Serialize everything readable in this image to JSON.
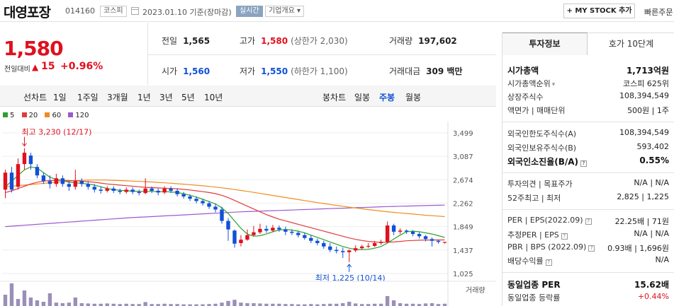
{
  "header": {
    "name": "대영포장",
    "code": "014160",
    "market_tag": "코스피",
    "date": "2023.01.10 기준(장마감)",
    "live_tag": "실시간",
    "company_tag": "기업개요 ▾",
    "mystock": "+ MY STOCK 추가",
    "quick_order": "빠른주문"
  },
  "price": {
    "current": "1,580",
    "change_label": "전일대비",
    "change_icon": "▲",
    "change": "15",
    "change_pct": "+0.96%"
  },
  "stats": {
    "prev": {
      "label": "전일",
      "value": "1,565"
    },
    "high": {
      "label": "고가",
      "value": "1,580",
      "sub": "(상한가 2,030)"
    },
    "volume": {
      "label": "거래량",
      "value": "197,602"
    },
    "open": {
      "label": "시가",
      "value": "1,560"
    },
    "low": {
      "label": "저가",
      "value": "1,550",
      "sub": "(하한가 1,100)"
    },
    "amount": {
      "label": "거래대금",
      "value": "309 백만"
    }
  },
  "period_bar": {
    "line_label": "선차트",
    "line_periods": [
      "1일",
      "1주일",
      "3개월",
      "1년",
      "3년",
      "5년",
      "10년"
    ],
    "candle_label": "봉차트",
    "candle_periods": [
      "일봉",
      "주봉",
      "월봉"
    ],
    "active": "주봉"
  },
  "chart_data": {
    "type": "candlestick",
    "legend": [
      {
        "name": "5",
        "color": "#2ca02c"
      },
      {
        "name": "20",
        "color": "#e23b3b"
      },
      {
        "name": "60",
        "color": "#f08c1e"
      },
      {
        "name": "120",
        "color": "#9a5ad0"
      }
    ],
    "y_ticks": [
      "3,499",
      "3,087",
      "2,674",
      "2,262",
      "1,849",
      "1,437",
      "1,025"
    ],
    "ylim": [
      1025,
      3499
    ],
    "max_annotation": "최고 3,230 (12/17)",
    "min_annotation": "최저 1,225 (10/14)",
    "volume_label": "거래량",
    "candles": [
      [
        2500,
        2800,
        2350,
        2850
      ],
      [
        2800,
        2500,
        2450,
        2900
      ],
      [
        2550,
        2950,
        2500,
        3050
      ],
      [
        2950,
        3150,
        2850,
        3230
      ],
      [
        3100,
        2950,
        2850,
        3150
      ],
      [
        2900,
        2750,
        2700,
        2950
      ],
      [
        2750,
        2650,
        2600,
        2800
      ],
      [
        2650,
        2600,
        2520,
        2750
      ],
      [
        2600,
        2700,
        2550,
        2780
      ],
      [
        2700,
        2600,
        2550,
        2750
      ],
      [
        2600,
        2550,
        2480,
        2650
      ],
      [
        2550,
        2650,
        2500,
        2850
      ],
      [
        2650,
        2600,
        2550,
        2700
      ],
      [
        2600,
        2550,
        2500,
        2650
      ],
      [
        2550,
        2500,
        2450,
        2600
      ],
      [
        2500,
        2480,
        2430,
        2560
      ],
      [
        2480,
        2520,
        2450,
        2560
      ],
      [
        2520,
        2480,
        2440,
        2560
      ],
      [
        2480,
        2460,
        2420,
        2520
      ],
      [
        2460,
        2500,
        2430,
        2540
      ],
      [
        2500,
        2460,
        2420,
        2540
      ],
      [
        2460,
        2440,
        2400,
        2500
      ],
      [
        2440,
        2520,
        2420,
        2700
      ],
      [
        2520,
        2480,
        2440,
        2560
      ],
      [
        2480,
        2450,
        2400,
        2520
      ],
      [
        2450,
        2520,
        2420,
        2560
      ],
      [
        2520,
        2480,
        2440,
        2560
      ],
      [
        2480,
        2420,
        2380,
        2520
      ],
      [
        2420,
        2380,
        2340,
        2460
      ],
      [
        2380,
        2340,
        2300,
        2420
      ],
      [
        2340,
        2300,
        2260,
        2380
      ],
      [
        2300,
        2260,
        2220,
        2340
      ],
      [
        2260,
        2200,
        2160,
        2300
      ],
      [
        2200,
        2150,
        2100,
        2250
      ],
      [
        2150,
        1950,
        1900,
        2200
      ],
      [
        1950,
        1800,
        1600,
        2000
      ],
      [
        1780,
        1550,
        1480,
        1800
      ],
      [
        1560,
        1620,
        1500,
        1700
      ],
      [
        1620,
        1700,
        1600,
        1800
      ],
      [
        1700,
        1750,
        1680,
        1860
      ],
      [
        1750,
        1810,
        1720,
        1900
      ],
      [
        1810,
        1780,
        1740,
        1870
      ],
      [
        1780,
        1830,
        1750,
        1880
      ],
      [
        1830,
        1800,
        1760,
        1870
      ],
      [
        1800,
        1760,
        1700,
        1850
      ],
      [
        1760,
        1740,
        1700,
        1800
      ],
      [
        1740,
        1700,
        1660,
        1780
      ],
      [
        1700,
        1650,
        1620,
        1740
      ],
      [
        1650,
        1600,
        1560,
        1700
      ],
      [
        1600,
        1560,
        1520,
        1640
      ],
      [
        1560,
        1500,
        1460,
        1600
      ],
      [
        1500,
        1440,
        1400,
        1560
      ],
      [
        1440,
        1420,
        1380,
        1500
      ],
      [
        1420,
        1400,
        1300,
        1480
      ],
      [
        1400,
        1430,
        1225,
        1450
      ],
      [
        1430,
        1470,
        1400,
        1520
      ],
      [
        1470,
        1500,
        1450,
        1530
      ],
      [
        1500,
        1510,
        1470,
        1560
      ],
      [
        1510,
        1560,
        1490,
        1600
      ],
      [
        1560,
        1580,
        1530,
        1620
      ],
      [
        1580,
        1870,
        1560,
        1940
      ],
      [
        1870,
        1760,
        1700,
        1900
      ],
      [
        1760,
        1780,
        1720,
        1820
      ],
      [
        1780,
        1760,
        1720,
        1800
      ],
      [
        1760,
        1720,
        1680,
        1790
      ],
      [
        1720,
        1680,
        1640,
        1750
      ],
      [
        1680,
        1630,
        1590,
        1700
      ],
      [
        1630,
        1600,
        1500,
        1660
      ],
      [
        1600,
        1580,
        1550,
        1620
      ],
      [
        1565,
        1580,
        1550,
        1580
      ]
    ],
    "ma5": [
      2550,
      2650,
      2750,
      2850,
      2900,
      2880,
      2800,
      2720,
      2680,
      2660,
      2630,
      2620,
      2610,
      2600,
      2580,
      2550,
      2520,
      2500,
      2490,
      2480,
      2475,
      2470,
      2470,
      2470,
      2465,
      2465,
      2460,
      2450,
      2430,
      2400,
      2370,
      2330,
      2290,
      2250,
      2180,
      2080,
      1950,
      1820,
      1720,
      1680,
      1690,
      1720,
      1760,
      1790,
      1800,
      1790,
      1770,
      1740,
      1700,
      1660,
      1620,
      1580,
      1540,
      1500,
      1470,
      1450,
      1445,
      1450,
      1470,
      1500,
      1560,
      1630,
      1700,
      1760,
      1770,
      1760,
      1740,
      1720,
      1690,
      1660
    ],
    "ma20": [
      2450,
      2480,
      2520,
      2560,
      2600,
      2630,
      2650,
      2660,
      2665,
      2665,
      2660,
      2655,
      2650,
      2640,
      2630,
      2615,
      2600,
      2590,
      2580,
      2570,
      2560,
      2550,
      2540,
      2535,
      2530,
      2525,
      2520,
      2515,
      2505,
      2495,
      2480,
      2465,
      2450,
      2430,
      2400,
      2360,
      2310,
      2260,
      2210,
      2160,
      2110,
      2060,
      2020,
      1980,
      1950,
      1920,
      1890,
      1860,
      1830,
      1800,
      1770,
      1740,
      1710,
      1680,
      1650,
      1625,
      1605,
      1590,
      1580,
      1575,
      1575,
      1580,
      1590,
      1600,
      1605,
      1610,
      1612,
      1614,
      1615,
      1616
    ],
    "ma60": [
      2550,
      2560,
      2570,
      2580,
      2590,
      2600,
      2610,
      2620,
      2630,
      2640,
      2650,
      2658,
      2664,
      2668,
      2670,
      2670,
      2668,
      2665,
      2660,
      2655,
      2650,
      2645,
      2640,
      2635,
      2628,
      2620,
      2612,
      2604,
      2596,
      2588,
      2578,
      2568,
      2558,
      2546,
      2532,
      2518,
      2502,
      2486,
      2470,
      2452,
      2434,
      2416,
      2398,
      2380,
      2362,
      2344,
      2326,
      2308,
      2290,
      2272,
      2256,
      2240,
      2224,
      2208,
      2192,
      2178,
      2164,
      2150,
      2136,
      2124,
      2112,
      2100,
      2090,
      2080,
      2070,
      2060,
      2050,
      2042,
      2034,
      2026
    ],
    "ma120": [
      1850,
      1858,
      1866,
      1874,
      1882,
      1890,
      1898,
      1906,
      1914,
      1922,
      1930,
      1938,
      1946,
      1954,
      1962,
      1970,
      1978,
      1986,
      1994,
      2002,
      2008,
      2014,
      2020,
      2026,
      2032,
      2038,
      2044,
      2050,
      2056,
      2062,
      2068,
      2074,
      2080,
      2086,
      2092,
      2098,
      2104,
      2110,
      2114,
      2118,
      2122,
      2126,
      2130,
      2134,
      2138,
      2142,
      2146,
      2150,
      2154,
      2158,
      2162,
      2166,
      2170,
      2174,
      2178,
      2182,
      2186,
      2190,
      2194,
      2198,
      2202,
      2205,
      2208,
      2211,
      2214,
      2217,
      2220,
      2223,
      2226,
      2229
    ],
    "volumes": [
      40,
      80,
      25,
      55,
      30,
      20,
      15,
      45,
      12,
      10,
      12,
      30,
      10,
      9,
      8,
      8,
      9,
      8,
      7,
      8,
      7,
      7,
      14,
      7,
      7,
      8,
      7,
      7,
      6,
      6,
      6,
      6,
      7,
      8,
      12,
      18,
      22,
      12,
      10,
      10,
      9,
      8,
      8,
      8,
      7,
      7,
      6,
      6,
      7,
      6,
      7,
      8,
      8,
      10,
      15,
      9,
      7,
      7,
      8,
      8,
      35,
      20,
      10,
      8,
      8,
      7,
      9,
      10,
      7,
      8
    ]
  },
  "panel": {
    "tab_invest": "투자정보",
    "tab_quote": "호가 10단계",
    "market_cap": {
      "label": "시가총액",
      "value": "1,713억원"
    },
    "cap_rank": {
      "label": "시가총액순위",
      "value": "코스피 625위"
    },
    "shares": {
      "label": "상장주식수",
      "value": "108,394,549"
    },
    "par": {
      "label": "액면가 | 매매단위",
      "value": "500원 | 1주"
    },
    "foreign_limit": {
      "label": "외국인한도주식수(A)",
      "value": "108,394,549"
    },
    "foreign_hold": {
      "label": "외국인보유주식수(B)",
      "value": "593,402"
    },
    "foreign_ratio": {
      "label": "외국인소진율(B/A)",
      "value": "0.55%"
    },
    "opinion": {
      "label": "투자의견 | 목표주가",
      "value": "N/A | N/A"
    },
    "week52": {
      "label": "52주최고 | 최저",
      "value": "2,825 | 1,225"
    },
    "per": {
      "label": "PER | EPS(2022.09)",
      "value": "22.25배 | 71원"
    },
    "est_per": {
      "label": "추정PER | EPS",
      "value": "N/A | N/A"
    },
    "pbr": {
      "label": "PBR | BPS (2022.09)",
      "value": "0.93배 | 1,696원"
    },
    "dividend": {
      "label": "배당수익률",
      "value": "N/A"
    },
    "sector_per": {
      "label": "동일업종 PER",
      "value": "15.62배"
    },
    "sector_rate": {
      "label": "동일업종 등락률",
      "value": "+0.44%"
    }
  }
}
